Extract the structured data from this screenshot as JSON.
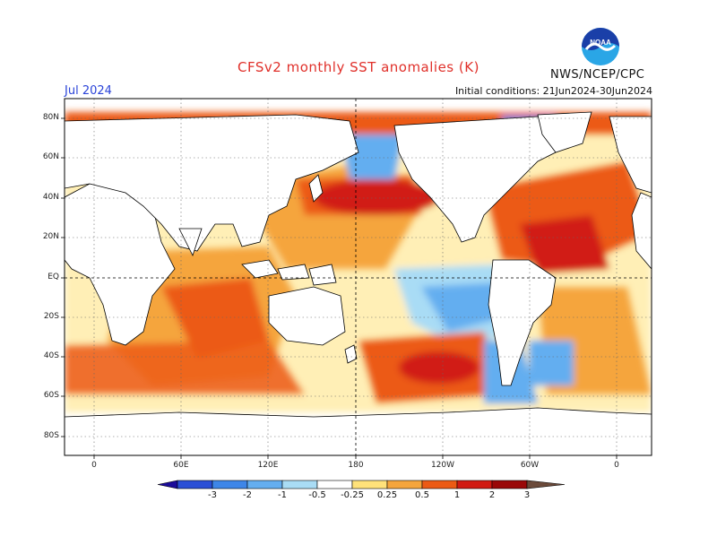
{
  "header": {
    "title": "CFSv2 monthly SST anomalies (K)",
    "agency": "NWS/NCEP/CPC",
    "month": "Jul 2024",
    "initial_conditions": "Initial conditions: 21Jun2024-30Jun2024"
  },
  "logo": {
    "text": "NOAA",
    "colors": {
      "top": "#1a3fa8",
      "bottom": "#2aa6e6"
    }
  },
  "map": {
    "lat_labels": [
      "80N",
      "60N",
      "40N",
      "20N",
      "EQ",
      "20S",
      "40S",
      "60S",
      "80S"
    ],
    "lon_labels": [
      "0",
      "60E",
      "120E",
      "180",
      "120W",
      "60W",
      "0"
    ]
  },
  "colorbar": {
    "labels": [
      "-3",
      "-2",
      "-1",
      "-0.5",
      "-0.25",
      "0.25",
      "0.5",
      "1",
      "2",
      "3"
    ],
    "colors": [
      "#1c0c9a",
      "#2a4fd6",
      "#3e86e8",
      "#64aef0",
      "#a9dcf5",
      "#ffffff",
      "#ffe27a",
      "#f5a53c",
      "#ec5a14",
      "#d11a12",
      "#9a0808",
      "#6b4a3a"
    ]
  }
}
